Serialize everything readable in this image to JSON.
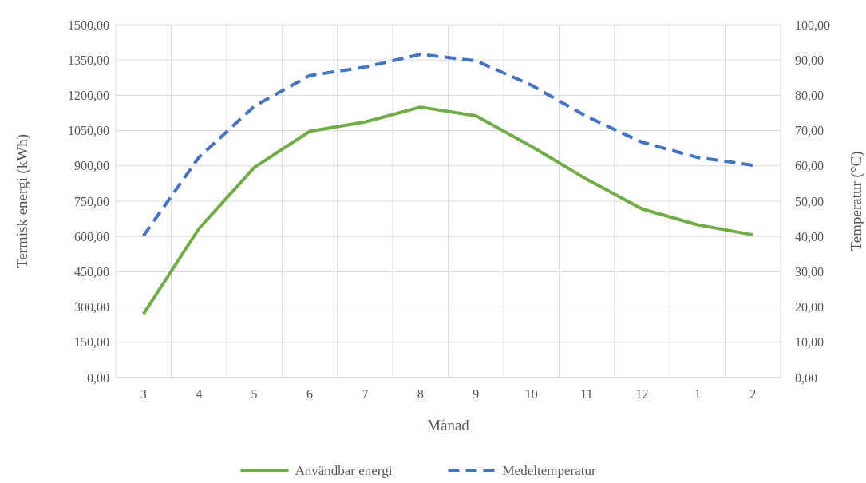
{
  "chart_data": {
    "type": "line",
    "xlabel": "Månad",
    "ylabel": "Termisk energi (kWh)",
    "y2label": "Temperatur (°C)",
    "categories": [
      "3",
      "4",
      "5",
      "6",
      "7",
      "8",
      "9",
      "10",
      "11",
      "12",
      "1",
      "2"
    ],
    "series": [
      {
        "name": "Användbar energi",
        "color": "#70ad47",
        "line_style": "solid",
        "values": [
          270,
          633,
          893,
          1047,
          1087,
          1150,
          1113,
          983,
          843,
          717,
          650,
          607
        ]
      },
      {
        "name": "Medeltemperatur",
        "color": "#4472c4",
        "line_style": "dashed",
        "axis": "y2",
        "values": [
          40.2,
          62.4,
          76.9,
          85.6,
          88,
          91.6,
          89.8,
          82.9,
          74,
          66.7,
          62.4,
          60.2
        ]
      }
    ],
    "ylim": [
      0,
      1500
    ],
    "yticks": [
      {
        "value": 0,
        "label": "0,00"
      },
      {
        "value": 150,
        "label": "150,00"
      },
      {
        "value": 300,
        "label": "300,00"
      },
      {
        "value": 450,
        "label": "450,00"
      },
      {
        "value": 600,
        "label": "600,00"
      },
      {
        "value": 750,
        "label": "750,00"
      },
      {
        "value": 900,
        "label": "900,00"
      },
      {
        "value": 1050,
        "label": "1050,00"
      },
      {
        "value": 1200,
        "label": "1200,00"
      },
      {
        "value": 1350,
        "label": "1350,00"
      },
      {
        "value": 1500,
        "label": "1500,00"
      }
    ],
    "y2lim": [
      0,
      100
    ],
    "y2ticks": [
      {
        "value": 0,
        "label": "0,00"
      },
      {
        "value": 10,
        "label": "10,00"
      },
      {
        "value": 20,
        "label": "20,00"
      },
      {
        "value": 30,
        "label": "30,00"
      },
      {
        "value": 40,
        "label": "40,00"
      },
      {
        "value": 50,
        "label": "50,00"
      },
      {
        "value": 60,
        "label": "60,00"
      },
      {
        "value": 70,
        "label": "70,00"
      },
      {
        "value": 80,
        "label": "80,00"
      },
      {
        "value": 90,
        "label": "90,00"
      },
      {
        "value": 100,
        "label": "100,00"
      }
    ],
    "grid": true,
    "legend": "bottom"
  }
}
